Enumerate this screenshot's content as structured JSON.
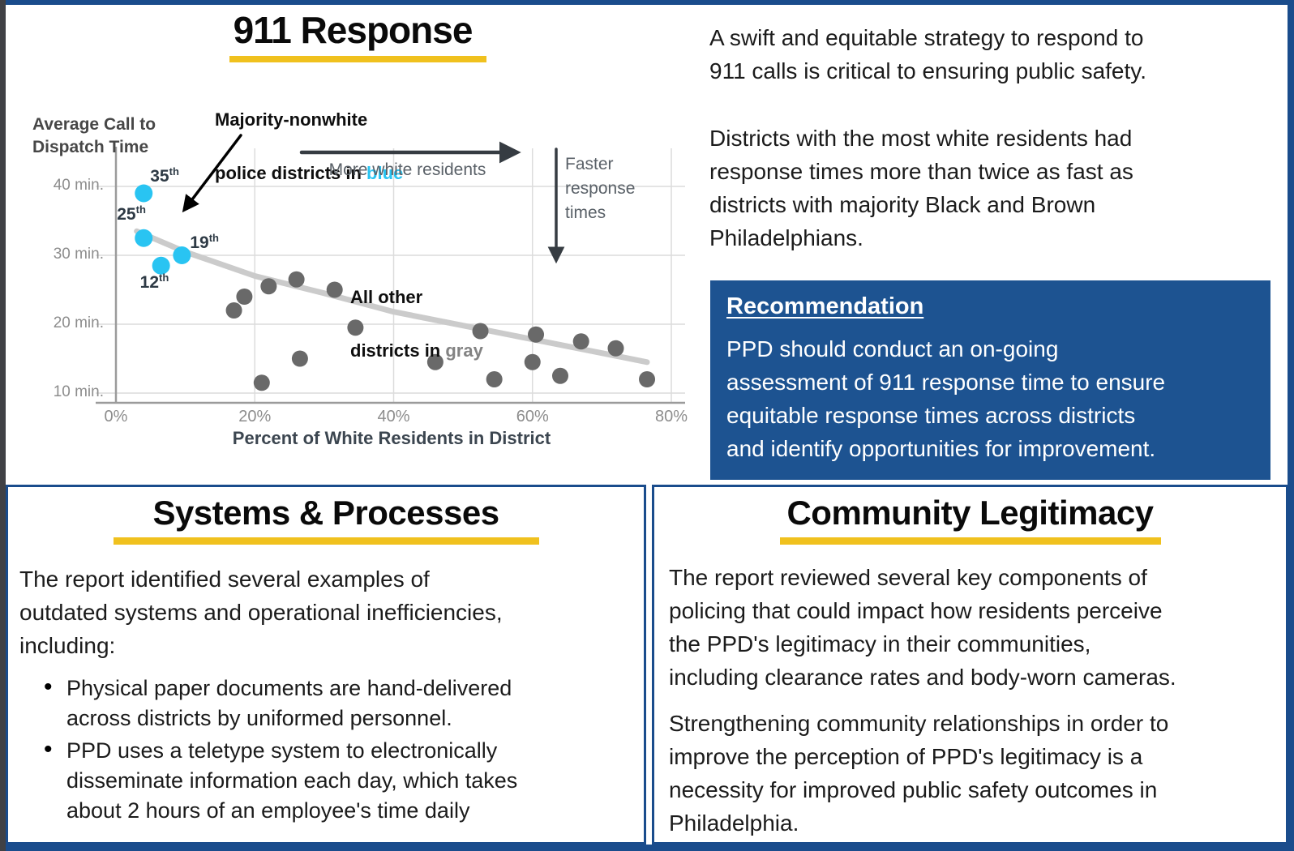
{
  "colors": {
    "blue_border": "#1A4C8C",
    "blue_box": "#1D5391",
    "yellow": "#F0C11E",
    "cyan": "#29C4F2",
    "gray_dot": "#696969"
  },
  "response911": {
    "title": "911 Response",
    "ylabel_lines": [
      "Average Call to",
      "Dispatch Time"
    ],
    "xlabel": "Percent of White Residents in District",
    "y_ticks": [
      "40 min.",
      "30 min.",
      "20 min.",
      "10 min."
    ],
    "x_ticks": [
      "0%",
      "20%",
      "40%",
      "60%",
      "80%"
    ],
    "annotation_nonwhite_line1": "Majority-nonwhite",
    "annotation_nonwhite_prefix": "police districts in ",
    "annotation_nonwhite_highlight": "blue",
    "annotation_other_line1": "All other",
    "annotation_other_prefix": "districts in ",
    "annotation_other_highlight": "gray",
    "arrow_more_white_label": "More white residents",
    "arrow_faster_label": "Faster response times"
  },
  "chart_data": {
    "type": "scatter",
    "title": "911 Response",
    "xlabel": "Percent of White Residents in District",
    "ylabel": "Average Call to Dispatch Time (minutes)",
    "xlim": [
      0,
      80
    ],
    "x_tick_values": [
      0,
      20,
      40,
      60,
      80
    ],
    "y_tick_values": [
      40,
      30,
      20,
      10
    ],
    "grid": true,
    "series": [
      {
        "name": "Majority-nonwhite police districts",
        "color": "#29C4F2",
        "points": [
          {
            "label": "35th",
            "x": 4,
            "y": 39
          },
          {
            "label": "25th",
            "x": 4,
            "y": 32.5
          },
          {
            "label": "19th",
            "x": 9.5,
            "y": 30
          },
          {
            "label": "12th",
            "x": 6.5,
            "y": 28.5
          }
        ]
      },
      {
        "name": "All other districts",
        "color": "#696969",
        "points": [
          {
            "x": 17,
            "y": 22
          },
          {
            "x": 18.5,
            "y": 24
          },
          {
            "x": 21,
            "y": 11.5
          },
          {
            "x": 22,
            "y": 25.5
          },
          {
            "x": 26,
            "y": 26.5
          },
          {
            "x": 26.5,
            "y": 15
          },
          {
            "x": 31.5,
            "y": 25
          },
          {
            "x": 34.5,
            "y": 19.5
          },
          {
            "x": 46,
            "y": 14.5
          },
          {
            "x": 52.5,
            "y": 19
          },
          {
            "x": 54.5,
            "y": 12
          },
          {
            "x": 60,
            "y": 14.5
          },
          {
            "x": 60.5,
            "y": 18.5
          },
          {
            "x": 64,
            "y": 12.5
          },
          {
            "x": 67,
            "y": 17.5
          },
          {
            "x": 72,
            "y": 16.5
          },
          {
            "x": 76.5,
            "y": 12
          }
        ]
      }
    ],
    "trend": [
      [
        3,
        33.5
      ],
      [
        10,
        30.5
      ],
      [
        20,
        27
      ],
      [
        30,
        24.5
      ],
      [
        40,
        21.8
      ],
      [
        50,
        19.8
      ],
      [
        60,
        17.8
      ],
      [
        70,
        15.8
      ],
      [
        76.5,
        14.5
      ]
    ]
  },
  "intro": {
    "p1": [
      "A swift and equitable strategy to respond to",
      "911 calls is critical to ensuring public safety."
    ],
    "p2": [
      "Districts with the most white residents had",
      "response times more than twice as fast as",
      "districts with majority Black and Brown",
      "Philadelphians."
    ]
  },
  "recommendation": {
    "title": "Recommendation",
    "body": [
      "PPD should conduct an on-going",
      "assessment of 911 response time to ensure",
      "equitable response times across districts",
      "and identify opportunities for improvement."
    ]
  },
  "systems": {
    "title": "Systems & Processes",
    "intro": [
      "The report identified several examples of",
      "outdated systems and operational inefficiencies,",
      "including:"
    ],
    "bullets": [
      [
        "Physical paper documents are hand-delivered",
        "across districts by uniformed personnel."
      ],
      [
        "PPD uses a teletype system to electronically",
        "disseminate information each day, which takes",
        "about 2 hours of an employee's time daily"
      ]
    ]
  },
  "community": {
    "title": "Community Legitimacy",
    "p1": [
      "The report reviewed several key components of",
      "policing that could impact how residents perceive",
      "the PPD's legitimacy in their communities,",
      "including clearance rates and body-worn cameras."
    ],
    "p2": [
      "Strengthening community relationships in order to",
      "improve the perception of PPD's legitimacy is a",
      "necessity for improved public safety outcomes in",
      "Philadelphia."
    ]
  }
}
